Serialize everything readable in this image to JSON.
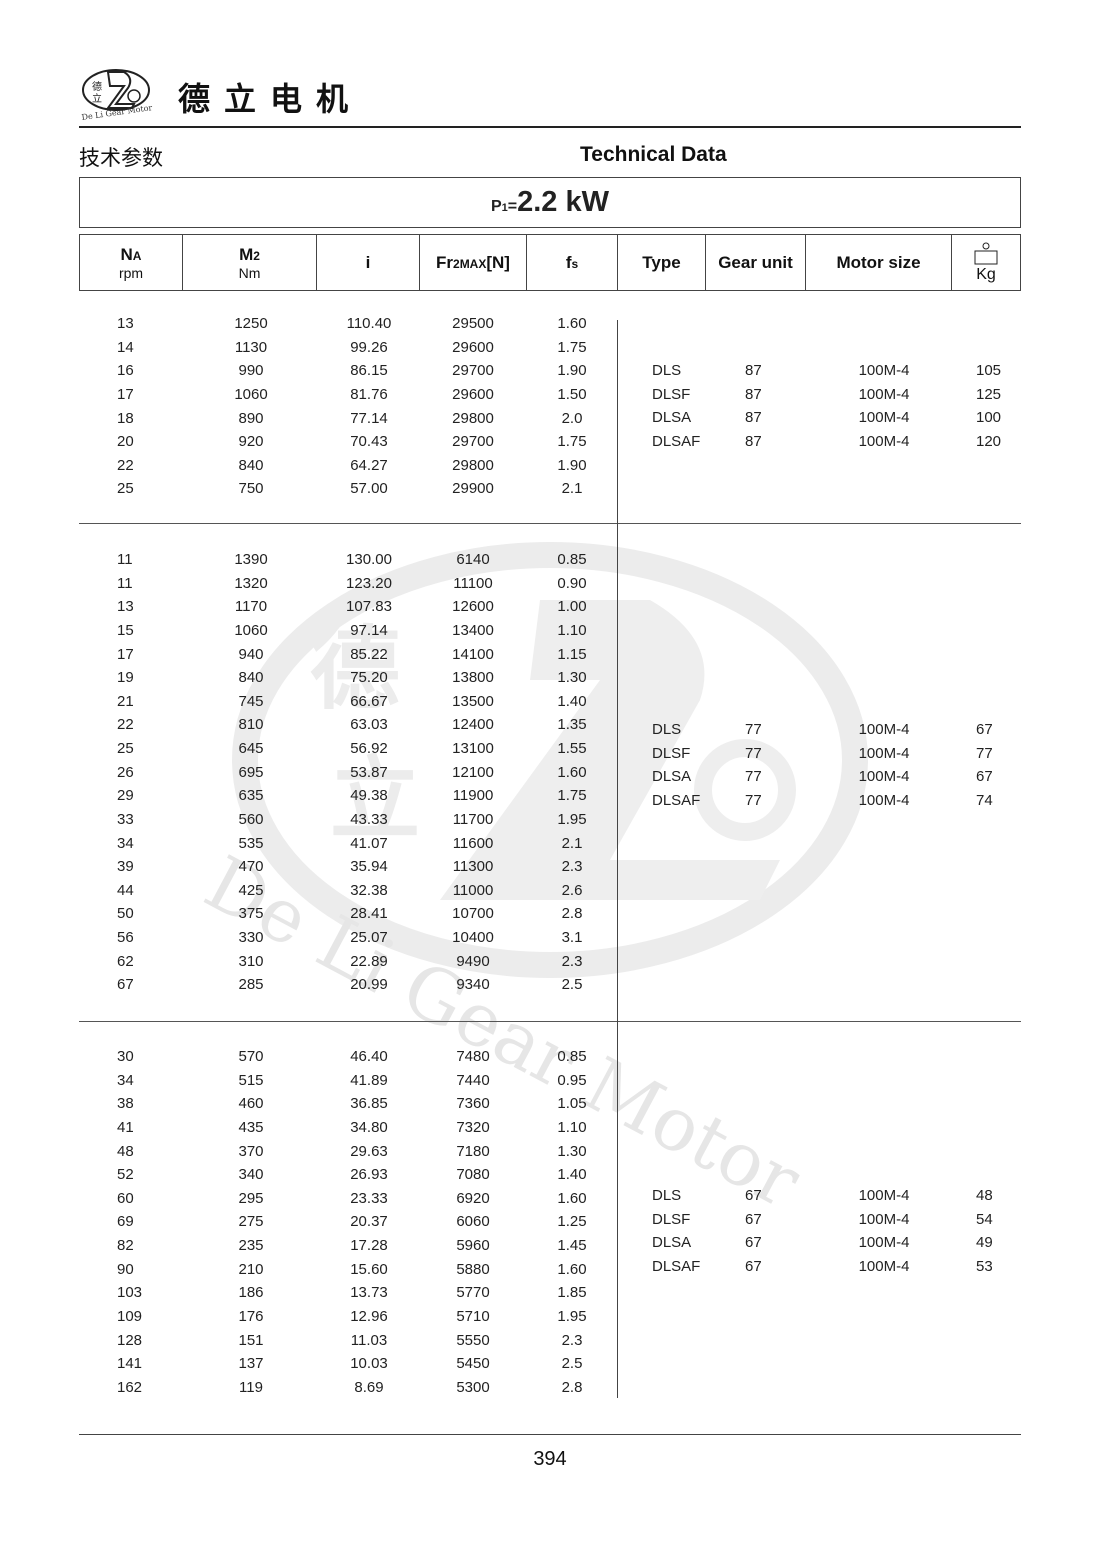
{
  "header": {
    "logo_text": "德立 De Li Gear Motor",
    "brand": "德立电机",
    "title_cn": "技术参数",
    "title_en": "Technical Data"
  },
  "power": {
    "label": "P",
    "sub": "1",
    "eq": "=",
    "value": "2.2 kW"
  },
  "columns": {
    "na": "N",
    "na_sub": "A",
    "na_unit": "rpm",
    "m2": "M",
    "m2_sub": "2",
    "m2_unit": "Nm",
    "i": "i",
    "fr": "Fr",
    "fr_sub": "2MAX",
    "fr_tail": "[N]",
    "fs": "f",
    "fs_sub": "s",
    "type": "Type",
    "gear": "Gear unit",
    "motor": "Motor size",
    "kg": "Kg",
    "kg_icon": "weight-icon"
  },
  "watermark": "De Li Gear Motor",
  "groups": [
    {
      "rows": [
        [
          "13",
          "1250",
          "110.40",
          "29500",
          "1.60"
        ],
        [
          "14",
          "1130",
          "99.26",
          "29600",
          "1.75"
        ],
        [
          "16",
          "990",
          "86.15",
          "29700",
          "1.90"
        ],
        [
          "17",
          "1060",
          "81.76",
          "29600",
          "1.50"
        ],
        [
          "18",
          "890",
          "77.14",
          "29800",
          "2.0"
        ],
        [
          "20",
          "920",
          "70.43",
          "29700",
          "1.75"
        ],
        [
          "22",
          "840",
          "64.27",
          "29800",
          "1.90"
        ],
        [
          "25",
          "750",
          "57.00",
          "29900",
          "2.1"
        ]
      ],
      "units": [
        [
          "DLS",
          "87",
          "100M-4",
          "105"
        ],
        [
          "DLSF",
          "87",
          "100M-4",
          "125"
        ],
        [
          "DLSA",
          "87",
          "100M-4",
          "100"
        ],
        [
          "DLSAF",
          "87",
          "100M-4",
          "120"
        ]
      ]
    },
    {
      "rows": [
        [
          "11",
          "1390",
          "130.00",
          "6140",
          "0.85"
        ],
        [
          "11",
          "1320",
          "123.20",
          "11100",
          "0.90"
        ],
        [
          "13",
          "1170",
          "107.83",
          "12600",
          "1.00"
        ],
        [
          "15",
          "1060",
          "97.14",
          "13400",
          "1.10"
        ],
        [
          "17",
          "940",
          "85.22",
          "14100",
          "1.15"
        ],
        [
          "19",
          "840",
          "75.20",
          "13800",
          "1.30"
        ],
        [
          "21",
          "745",
          "66.67",
          "13500",
          "1.40"
        ],
        [
          "22",
          "810",
          "63.03",
          "12400",
          "1.35"
        ],
        [
          "25",
          "645",
          "56.92",
          "13100",
          "1.55"
        ],
        [
          "26",
          "695",
          "53.87",
          "12100",
          "1.60"
        ],
        [
          "29",
          "635",
          "49.38",
          "11900",
          "1.75"
        ],
        [
          "33",
          "560",
          "43.33",
          "11700",
          "1.95"
        ],
        [
          "34",
          "535",
          "41.07",
          "11600",
          "2.1"
        ],
        [
          "39",
          "470",
          "35.94",
          "11300",
          "2.3"
        ],
        [
          "44",
          "425",
          "32.38",
          "11000",
          "2.6"
        ],
        [
          "50",
          "375",
          "28.41",
          "10700",
          "2.8"
        ],
        [
          "56",
          "330",
          "25.07",
          "10400",
          "3.1"
        ],
        [
          "62",
          "310",
          "22.89",
          "9490",
          "2.3"
        ],
        [
          "67",
          "285",
          "20.99",
          "9340",
          "2.5"
        ]
      ],
      "units": [
        [
          "DLS",
          "77",
          "100M-4",
          "67"
        ],
        [
          "DLSF",
          "77",
          "100M-4",
          "77"
        ],
        [
          "DLSA",
          "77",
          "100M-4",
          "67"
        ],
        [
          "DLSAF",
          "77",
          "100M-4",
          "74"
        ]
      ]
    },
    {
      "rows": [
        [
          "30",
          "570",
          "46.40",
          "7480",
          "0.85"
        ],
        [
          "34",
          "515",
          "41.89",
          "7440",
          "0.95"
        ],
        [
          "38",
          "460",
          "36.85",
          "7360",
          "1.05"
        ],
        [
          "41",
          "435",
          "34.80",
          "7320",
          "1.10"
        ],
        [
          "48",
          "370",
          "29.63",
          "7180",
          "1.30"
        ],
        [
          "52",
          "340",
          "26.93",
          "7080",
          "1.40"
        ],
        [
          "60",
          "295",
          "23.33",
          "6920",
          "1.60"
        ],
        [
          "69",
          "275",
          "20.37",
          "6060",
          "1.25"
        ],
        [
          "82",
          "235",
          "17.28",
          "5960",
          "1.45"
        ],
        [
          "90",
          "210",
          "15.60",
          "5880",
          "1.60"
        ],
        [
          "103",
          "186",
          "13.73",
          "5770",
          "1.85"
        ],
        [
          "109",
          "176",
          "12.96",
          "5710",
          "1.95"
        ],
        [
          "128",
          "151",
          "11.03",
          "5550",
          "2.3"
        ],
        [
          "141",
          "137",
          "10.03",
          "5450",
          "2.5"
        ],
        [
          "162",
          "119",
          "8.69",
          "5300",
          "2.8"
        ]
      ],
      "units": [
        [
          "DLS",
          "67",
          "100M-4",
          "48"
        ],
        [
          "DLSF",
          "67",
          "100M-4",
          "54"
        ],
        [
          "DLSA",
          "67",
          "100M-4",
          "49"
        ],
        [
          "DLSAF",
          "67",
          "100M-4",
          "53"
        ]
      ]
    }
  ],
  "page_number": "394"
}
